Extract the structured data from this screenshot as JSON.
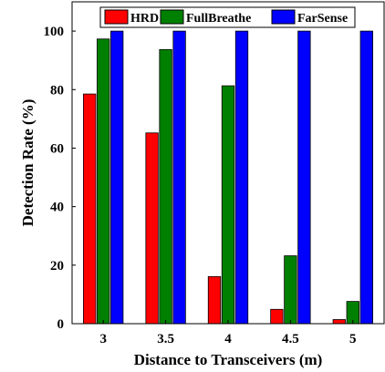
{
  "chart_data": {
    "type": "bar",
    "title": "",
    "xlabel": "Distance to Transceivers (m)",
    "ylabel": "Detection Rate (%)",
    "categories": [
      "3",
      "3.5",
      "4",
      "4.5",
      "5"
    ],
    "series": [
      {
        "name": "HRD",
        "color": "#ff0000",
        "values": [
          78.5,
          65.2,
          16.1,
          4.9,
          1.4
        ]
      },
      {
        "name": "FullBreathe",
        "color": "#008000",
        "values": [
          97.3,
          93.7,
          81.3,
          23.2,
          7.6
        ]
      },
      {
        "name": "FarSense",
        "color": "#0000ff",
        "values": [
          100,
          100,
          100,
          100,
          100
        ]
      }
    ],
    "yticks": [
      "0",
      "20",
      "40",
      "60",
      "80",
      "100"
    ],
    "ylim": [
      0,
      110
    ],
    "grid": false,
    "legend_position": "top"
  }
}
